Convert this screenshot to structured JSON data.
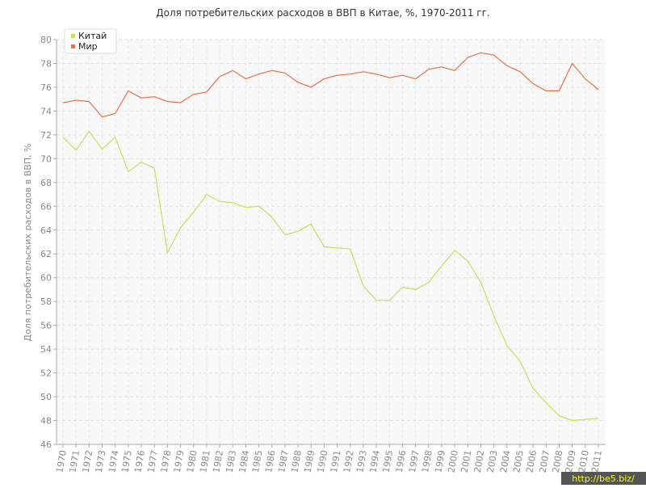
{
  "chart_data": {
    "type": "line",
    "title": "Доля потребительских расходов в ВВП в Китае, %, 1970-2011 гг.",
    "y_label": "Доля потребительских расходов в ВВП, %",
    "categories": [
      "1970",
      "1971",
      "1972",
      "1973",
      "1974",
      "1975",
      "1976",
      "1977",
      "1978",
      "1979",
      "1980",
      "1981",
      "1982",
      "1983",
      "1984",
      "1985",
      "1986",
      "1987",
      "1988",
      "1989",
      "1990",
      "1991",
      "1992",
      "1993",
      "1994",
      "1995",
      "1996",
      "1997",
      "1998",
      "1999",
      "2000",
      "2001",
      "2002",
      "2003",
      "2004",
      "2005",
      "2006",
      "2007",
      "2008",
      "2009",
      "2010",
      "2011"
    ],
    "series": [
      {
        "name": "Китай",
        "color": "#c8e05a",
        "values": [
          71.8,
          70.7,
          72.3,
          70.8,
          71.8,
          68.9,
          69.7,
          69.2,
          62.1,
          64.2,
          65.5,
          67.0,
          66.4,
          66.3,
          65.9,
          66.0,
          65.1,
          63.6,
          63.9,
          64.5,
          62.6,
          62.5,
          62.4,
          59.3,
          58.1,
          58.1,
          59.2,
          59.0,
          59.6,
          61.0,
          62.3,
          61.4,
          59.6,
          56.8,
          54.3,
          53.0,
          50.7,
          49.5,
          48.4,
          48.0,
          48.1,
          48.2
        ]
      },
      {
        "name": "Мир",
        "color": "#e4744a",
        "values": [
          74.7,
          74.9,
          74.8,
          73.5,
          73.8,
          75.7,
          75.1,
          75.2,
          74.8,
          74.7,
          75.4,
          75.6,
          76.9,
          77.4,
          76.7,
          77.1,
          77.4,
          77.2,
          76.4,
          76.0,
          76.7,
          77.0,
          77.1,
          77.3,
          77.1,
          76.8,
          77.0,
          76.7,
          77.5,
          77.7,
          77.4,
          78.5,
          78.9,
          78.7,
          77.8,
          77.3,
          76.3,
          75.7,
          75.7,
          78.0,
          76.7,
          75.8
        ]
      }
    ],
    "ylim": [
      46,
      80
    ],
    "yticks": [
      46,
      48,
      50,
      52,
      54,
      56,
      58,
      60,
      62,
      64,
      66,
      68,
      70,
      72,
      74,
      76,
      78,
      80
    ],
    "grid": true,
    "legend": "top-left",
    "watermark": "http://be5.biz/"
  }
}
